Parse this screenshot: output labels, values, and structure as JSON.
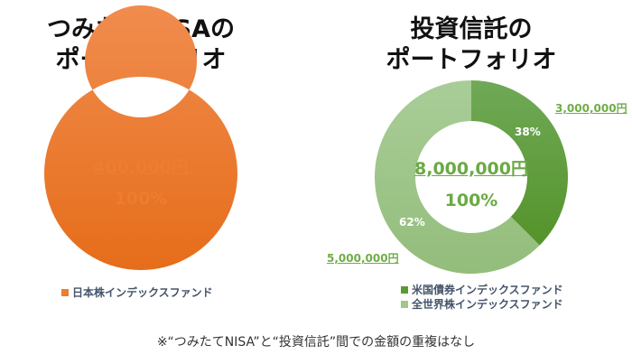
{
  "chart_data": [
    {
      "type": "pie",
      "title": "つみたてNISAのポートフォリオ",
      "center_amount": "400,000円",
      "center_pct": "100%",
      "slices": [
        {
          "name": "日本株インデックスファンド",
          "value": 400000,
          "percent": 100,
          "color": "#ed7d31"
        }
      ]
    },
    {
      "type": "pie",
      "title": "投資信託のポートフォリオ",
      "center_amount": "8,000,000円",
      "center_pct": "100%",
      "slices": [
        {
          "name": "米国債券インデックスファンド",
          "value": 3000000,
          "percent": 38,
          "label": "38%",
          "amount": "3,000,000円",
          "color": "#5a9a33"
        },
        {
          "name": "全世界株インデックスファンド",
          "value": 5000000,
          "percent": 62,
          "label": "62%",
          "amount": "5,000,000円",
          "color": "#a0c88a"
        }
      ]
    }
  ],
  "titles": {
    "left": [
      "つみたてNISAの",
      "ポートフォリオ"
    ],
    "right": [
      "投資信託の",
      "ポートフォリオ"
    ]
  },
  "note": "※“つみたてNISA”と“投資信託”間での金額の重複はなし"
}
